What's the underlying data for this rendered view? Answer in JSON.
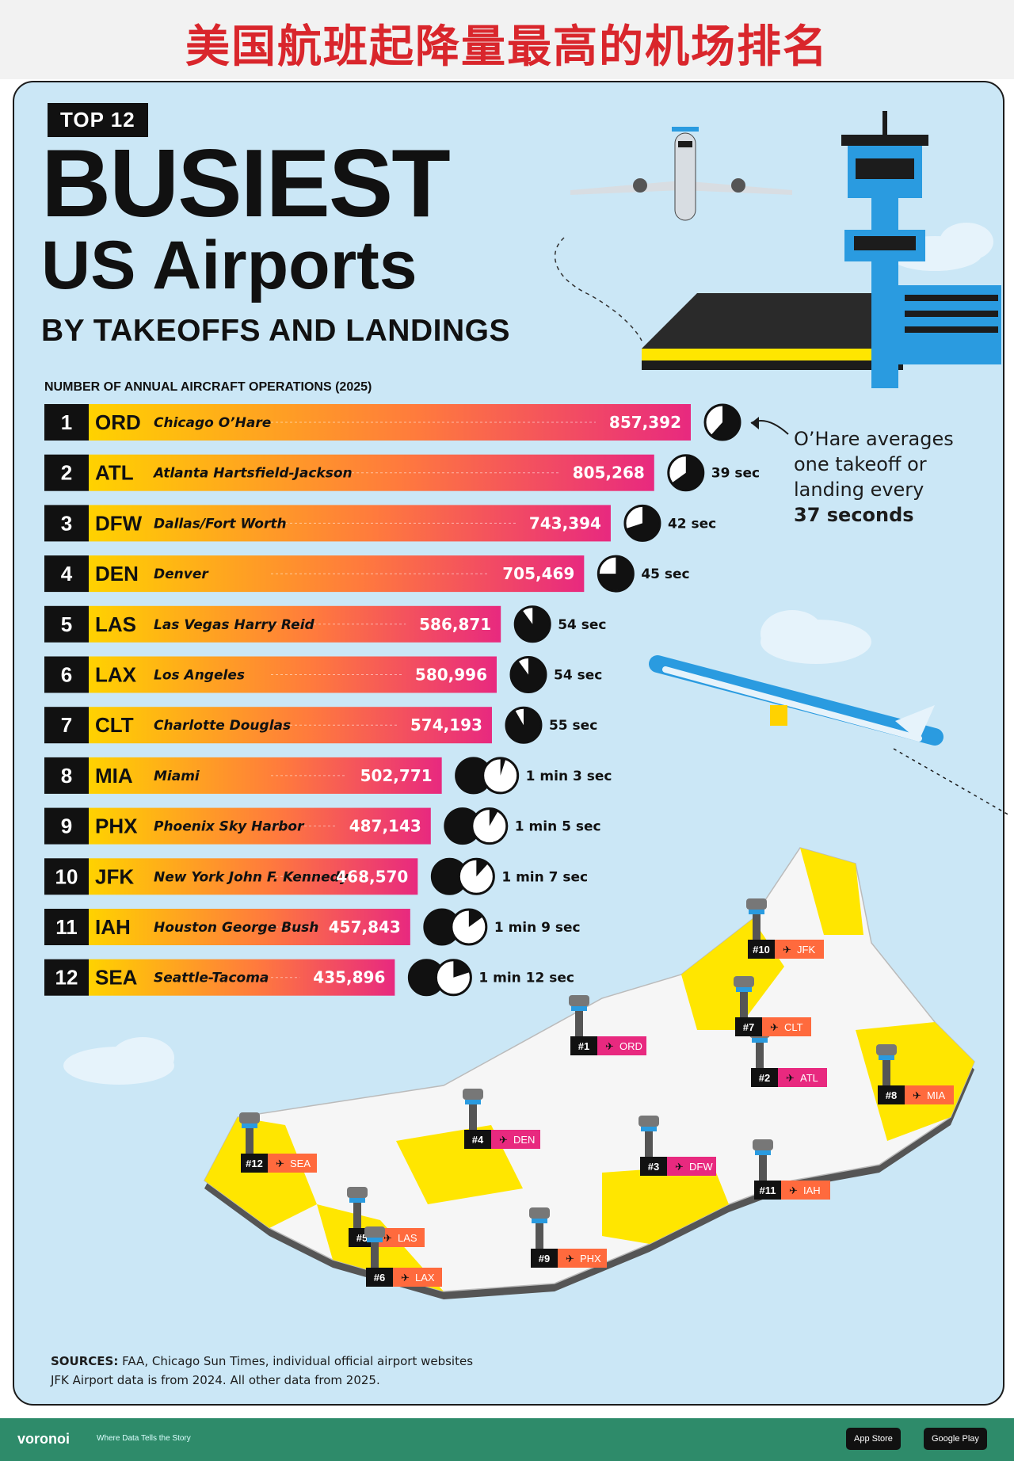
{
  "header": {
    "chinese_title": "美国航班起降量最高的机场排名"
  },
  "poster": {
    "badge": "TOP 12",
    "title_line1": "BUSIEST",
    "title_line2": "US Airports",
    "subtitle": "BY TAKEOFFS AND LANDINGS",
    "axis_caption": "NUMBER OF ANNUAL AIRCRAFT  OPERATIONS (2025)"
  },
  "annotation": {
    "line1": "O’Hare averages",
    "line2": "one takeoff or",
    "line3": "landing every",
    "line4": "37 seconds"
  },
  "sources": {
    "label": "SOURCES:",
    "text": "FAA, Chicago Sun Times, individual official airport websites",
    "note": "JFK Airport data is from 2024. All other data from 2025."
  },
  "footer": {
    "brand": "voronoi",
    "tagline": "Where Data Tells the Story",
    "app_store": "App Store",
    "google_play": "Google Play"
  },
  "colors": {
    "bar_start": "#ffd200",
    "bar_mid": "#ff7a3d",
    "bar_end": "#e8297f",
    "rank_bg": "#111111"
  },
  "chart_data": {
    "type": "bar",
    "orientation": "horizontal",
    "categories": [
      "ORD",
      "ATL",
      "DFW",
      "DEN",
      "LAS",
      "LAX",
      "CLT",
      "MIA",
      "PHX",
      "JFK",
      "IAH",
      "SEA"
    ],
    "ranks": [
      "1",
      "2",
      "3",
      "4",
      "5",
      "6",
      "7",
      "8",
      "9",
      "10",
      "11",
      "12"
    ],
    "airport_names": [
      "Chicago O’Hare",
      "Atlanta Hartsfield-Jackson",
      "Dallas/Fort Worth",
      "Denver",
      "Las Vegas Harry Reid",
      "Los Angeles",
      "Charlotte Douglas",
      "Miami",
      "Phoenix Sky Harbor",
      "New York John F. Kennedy",
      "Houston George Bush",
      "Seattle-Tacoma"
    ],
    "values": [
      857392,
      805268,
      743394,
      705469,
      586871,
      580996,
      574193,
      502771,
      487143,
      468570,
      457843,
      435896
    ],
    "value_labels": [
      "857,392",
      "805,268",
      "743,394",
      "705,469",
      "586,871",
      "580,996",
      "574,193",
      "502,771",
      "487,143",
      "468,570",
      "457,843",
      "435,896"
    ],
    "interval_seconds": [
      37,
      39,
      42,
      45,
      54,
      54,
      55,
      63,
      65,
      67,
      69,
      72
    ],
    "interval_labels": [
      "",
      "39 sec",
      "42 sec",
      "45 sec",
      "54 sec",
      "54 sec",
      "55 sec",
      "1 min 3 sec",
      "1 min 5 sec",
      "1 min 7 sec",
      "1 min 9 sec",
      "1 min 12 sec"
    ],
    "map_labels": [
      "#1",
      "#2",
      "#3",
      "#4",
      "#5",
      "#6",
      "#7",
      "#8",
      "#9",
      "#10",
      "#11",
      "#12"
    ]
  }
}
